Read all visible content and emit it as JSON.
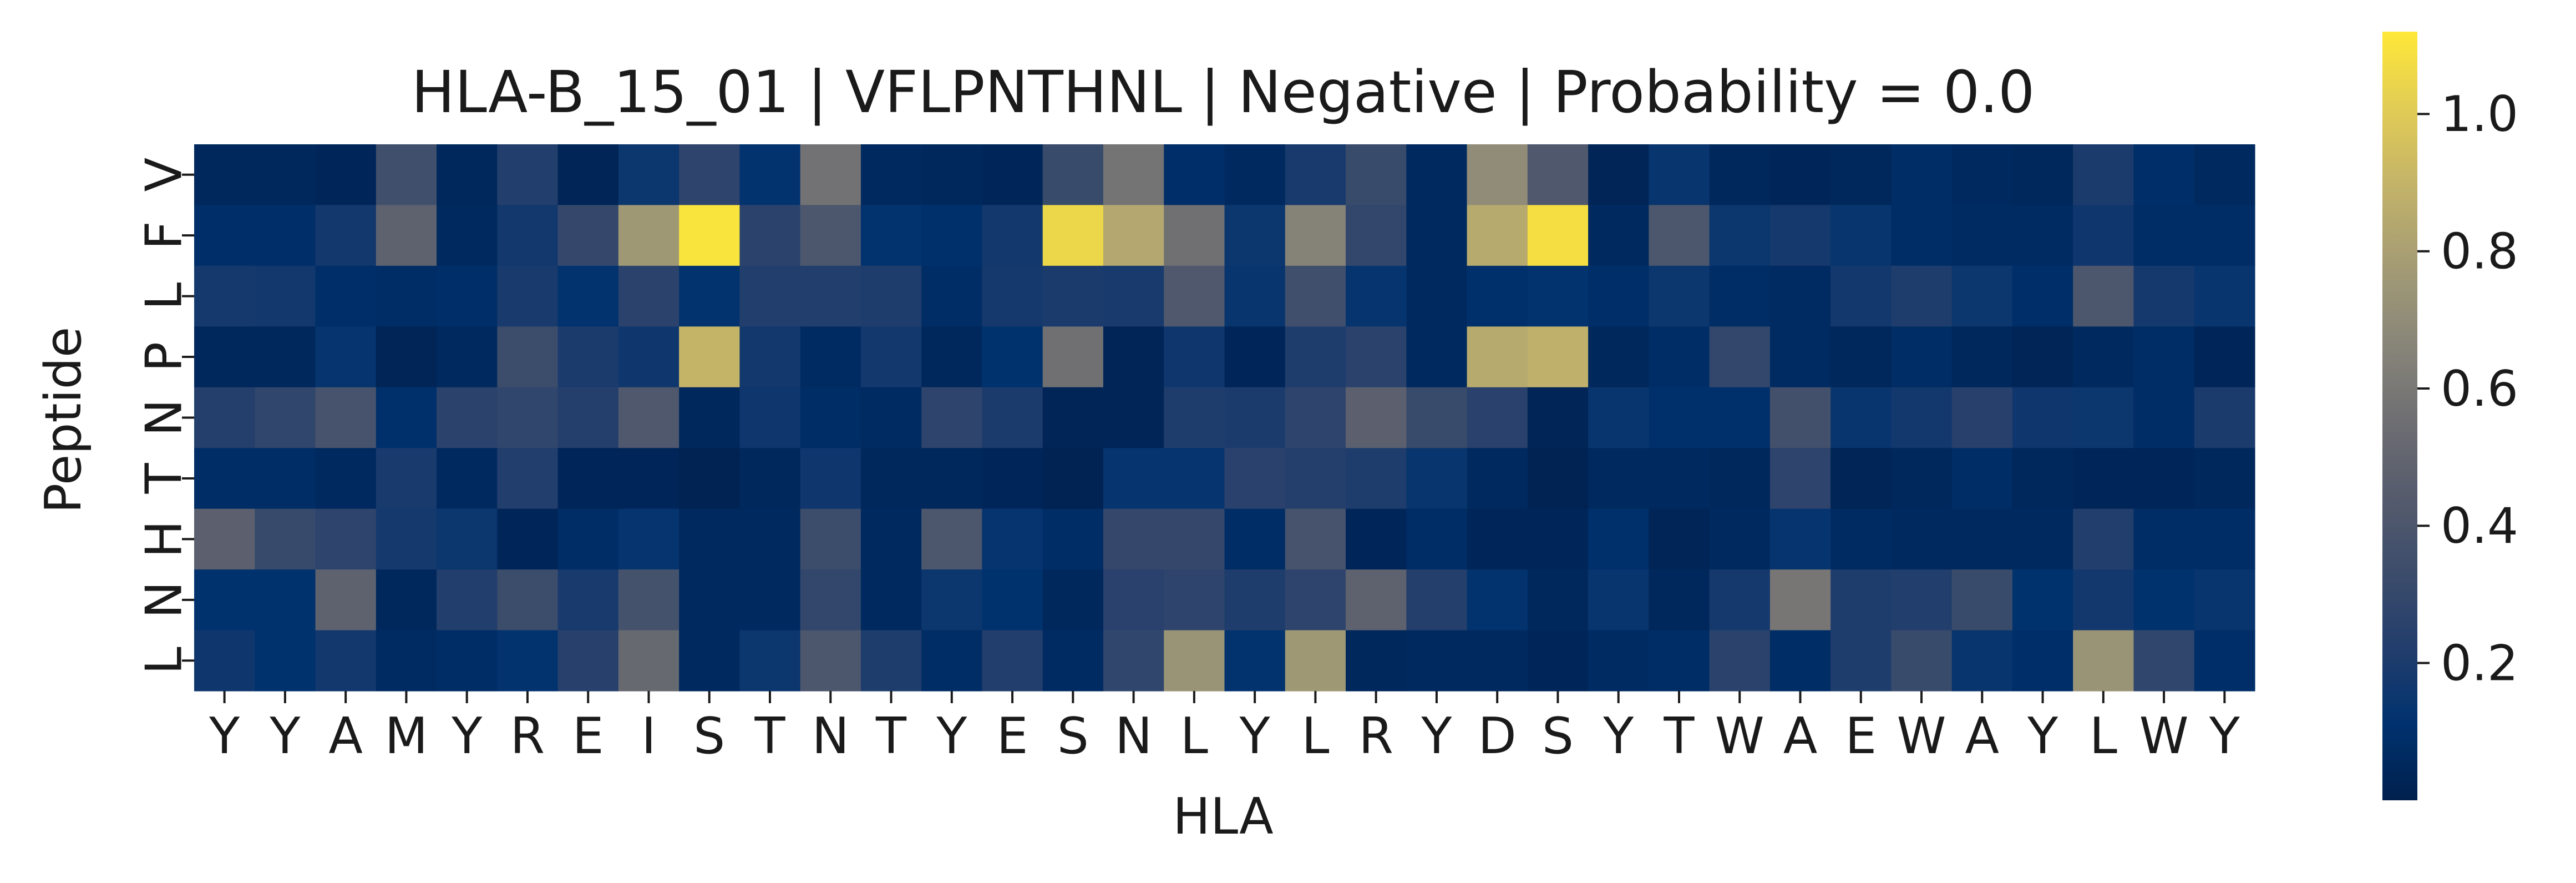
{
  "chart_data": {
    "type": "heatmap",
    "title": "HLA-B_15_01 | VFLPNTHNL | Negative | Probability = 0.0",
    "xlabel": "HLA",
    "ylabel": "Peptide",
    "x_tick_labels": [
      "Y",
      "Y",
      "A",
      "M",
      "Y",
      "R",
      "E",
      "I",
      "S",
      "T",
      "N",
      "T",
      "Y",
      "E",
      "S",
      "N",
      "L",
      "Y",
      "L",
      "R",
      "Y",
      "D",
      "S",
      "Y",
      "T",
      "W",
      "A",
      "E",
      "W",
      "A",
      "Y",
      "L",
      "W",
      "Y"
    ],
    "y_tick_labels": [
      "V",
      "F",
      "L",
      "P",
      "N",
      "T",
      "H",
      "N",
      "L"
    ],
    "colormap": "cividis",
    "colorbar": {
      "range": [
        0.0,
        1.12
      ],
      "ticks": [
        0.2,
        0.4,
        0.6,
        0.8,
        1.0
      ],
      "tick_labels": [
        "0.2",
        "0.4",
        "0.6",
        "0.8",
        "1.0"
      ]
    },
    "values": [
      [
        0.05,
        0.05,
        0.04,
        0.35,
        0.05,
        0.22,
        0.03,
        0.15,
        0.27,
        0.12,
        0.57,
        0.06,
        0.05,
        0.04,
        0.32,
        0.58,
        0.09,
        0.06,
        0.19,
        0.32,
        0.06,
        0.7,
        0.42,
        0.03,
        0.14,
        0.05,
        0.04,
        0.05,
        0.08,
        0.06,
        0.05,
        0.2,
        0.09,
        0.06
      ],
      [
        0.09,
        0.09,
        0.17,
        0.48,
        0.06,
        0.17,
        0.3,
        0.76,
        1.1,
        0.26,
        0.4,
        0.12,
        0.1,
        0.17,
        1.05,
        0.84,
        0.56,
        0.15,
        0.65,
        0.29,
        0.06,
        0.85,
        1.08,
        0.06,
        0.4,
        0.15,
        0.18,
        0.14,
        0.08,
        0.07,
        0.07,
        0.16,
        0.08,
        0.08
      ],
      [
        0.18,
        0.17,
        0.09,
        0.08,
        0.09,
        0.19,
        0.12,
        0.26,
        0.12,
        0.22,
        0.22,
        0.21,
        0.08,
        0.18,
        0.2,
        0.19,
        0.42,
        0.14,
        0.35,
        0.13,
        0.06,
        0.1,
        0.12,
        0.09,
        0.15,
        0.08,
        0.07,
        0.17,
        0.21,
        0.15,
        0.09,
        0.4,
        0.18,
        0.14
      ],
      [
        0.05,
        0.05,
        0.13,
        0.03,
        0.06,
        0.33,
        0.2,
        0.16,
        0.9,
        0.17,
        0.07,
        0.17,
        0.05,
        0.11,
        0.56,
        0.03,
        0.16,
        0.04,
        0.21,
        0.26,
        0.06,
        0.85,
        0.88,
        0.05,
        0.08,
        0.29,
        0.07,
        0.05,
        0.08,
        0.05,
        0.03,
        0.06,
        0.08,
        0.04
      ],
      [
        0.23,
        0.28,
        0.38,
        0.1,
        0.26,
        0.28,
        0.23,
        0.42,
        0.05,
        0.16,
        0.08,
        0.07,
        0.27,
        0.2,
        0.03,
        0.03,
        0.21,
        0.2,
        0.27,
        0.47,
        0.32,
        0.25,
        0.03,
        0.14,
        0.1,
        0.1,
        0.36,
        0.14,
        0.17,
        0.24,
        0.16,
        0.15,
        0.08,
        0.2
      ],
      [
        0.08,
        0.08,
        0.06,
        0.19,
        0.06,
        0.22,
        0.04,
        0.04,
        0.02,
        0.05,
        0.16,
        0.05,
        0.05,
        0.04,
        0.02,
        0.13,
        0.13,
        0.25,
        0.23,
        0.21,
        0.14,
        0.06,
        0.02,
        0.06,
        0.06,
        0.05,
        0.27,
        0.03,
        0.05,
        0.08,
        0.05,
        0.04,
        0.04,
        0.05
      ],
      [
        0.47,
        0.31,
        0.27,
        0.18,
        0.15,
        0.04,
        0.08,
        0.13,
        0.06,
        0.06,
        0.33,
        0.06,
        0.4,
        0.13,
        0.08,
        0.3,
        0.3,
        0.08,
        0.38,
        0.04,
        0.08,
        0.04,
        0.04,
        0.1,
        0.03,
        0.06,
        0.13,
        0.07,
        0.06,
        0.06,
        0.06,
        0.22,
        0.08,
        0.08
      ],
      [
        0.11,
        0.11,
        0.48,
        0.05,
        0.22,
        0.33,
        0.19,
        0.37,
        0.06,
        0.06,
        0.29,
        0.06,
        0.15,
        0.11,
        0.05,
        0.25,
        0.27,
        0.21,
        0.27,
        0.48,
        0.23,
        0.12,
        0.05,
        0.14,
        0.05,
        0.18,
        0.59,
        0.21,
        0.22,
        0.32,
        0.11,
        0.17,
        0.11,
        0.14
      ],
      [
        0.16,
        0.11,
        0.17,
        0.07,
        0.08,
        0.12,
        0.24,
        0.52,
        0.06,
        0.15,
        0.4,
        0.21,
        0.08,
        0.22,
        0.07,
        0.28,
        0.74,
        0.12,
        0.76,
        0.05,
        0.06,
        0.06,
        0.04,
        0.07,
        0.08,
        0.26,
        0.08,
        0.21,
        0.32,
        0.14,
        0.09,
        0.74,
        0.28,
        0.09
      ]
    ]
  }
}
